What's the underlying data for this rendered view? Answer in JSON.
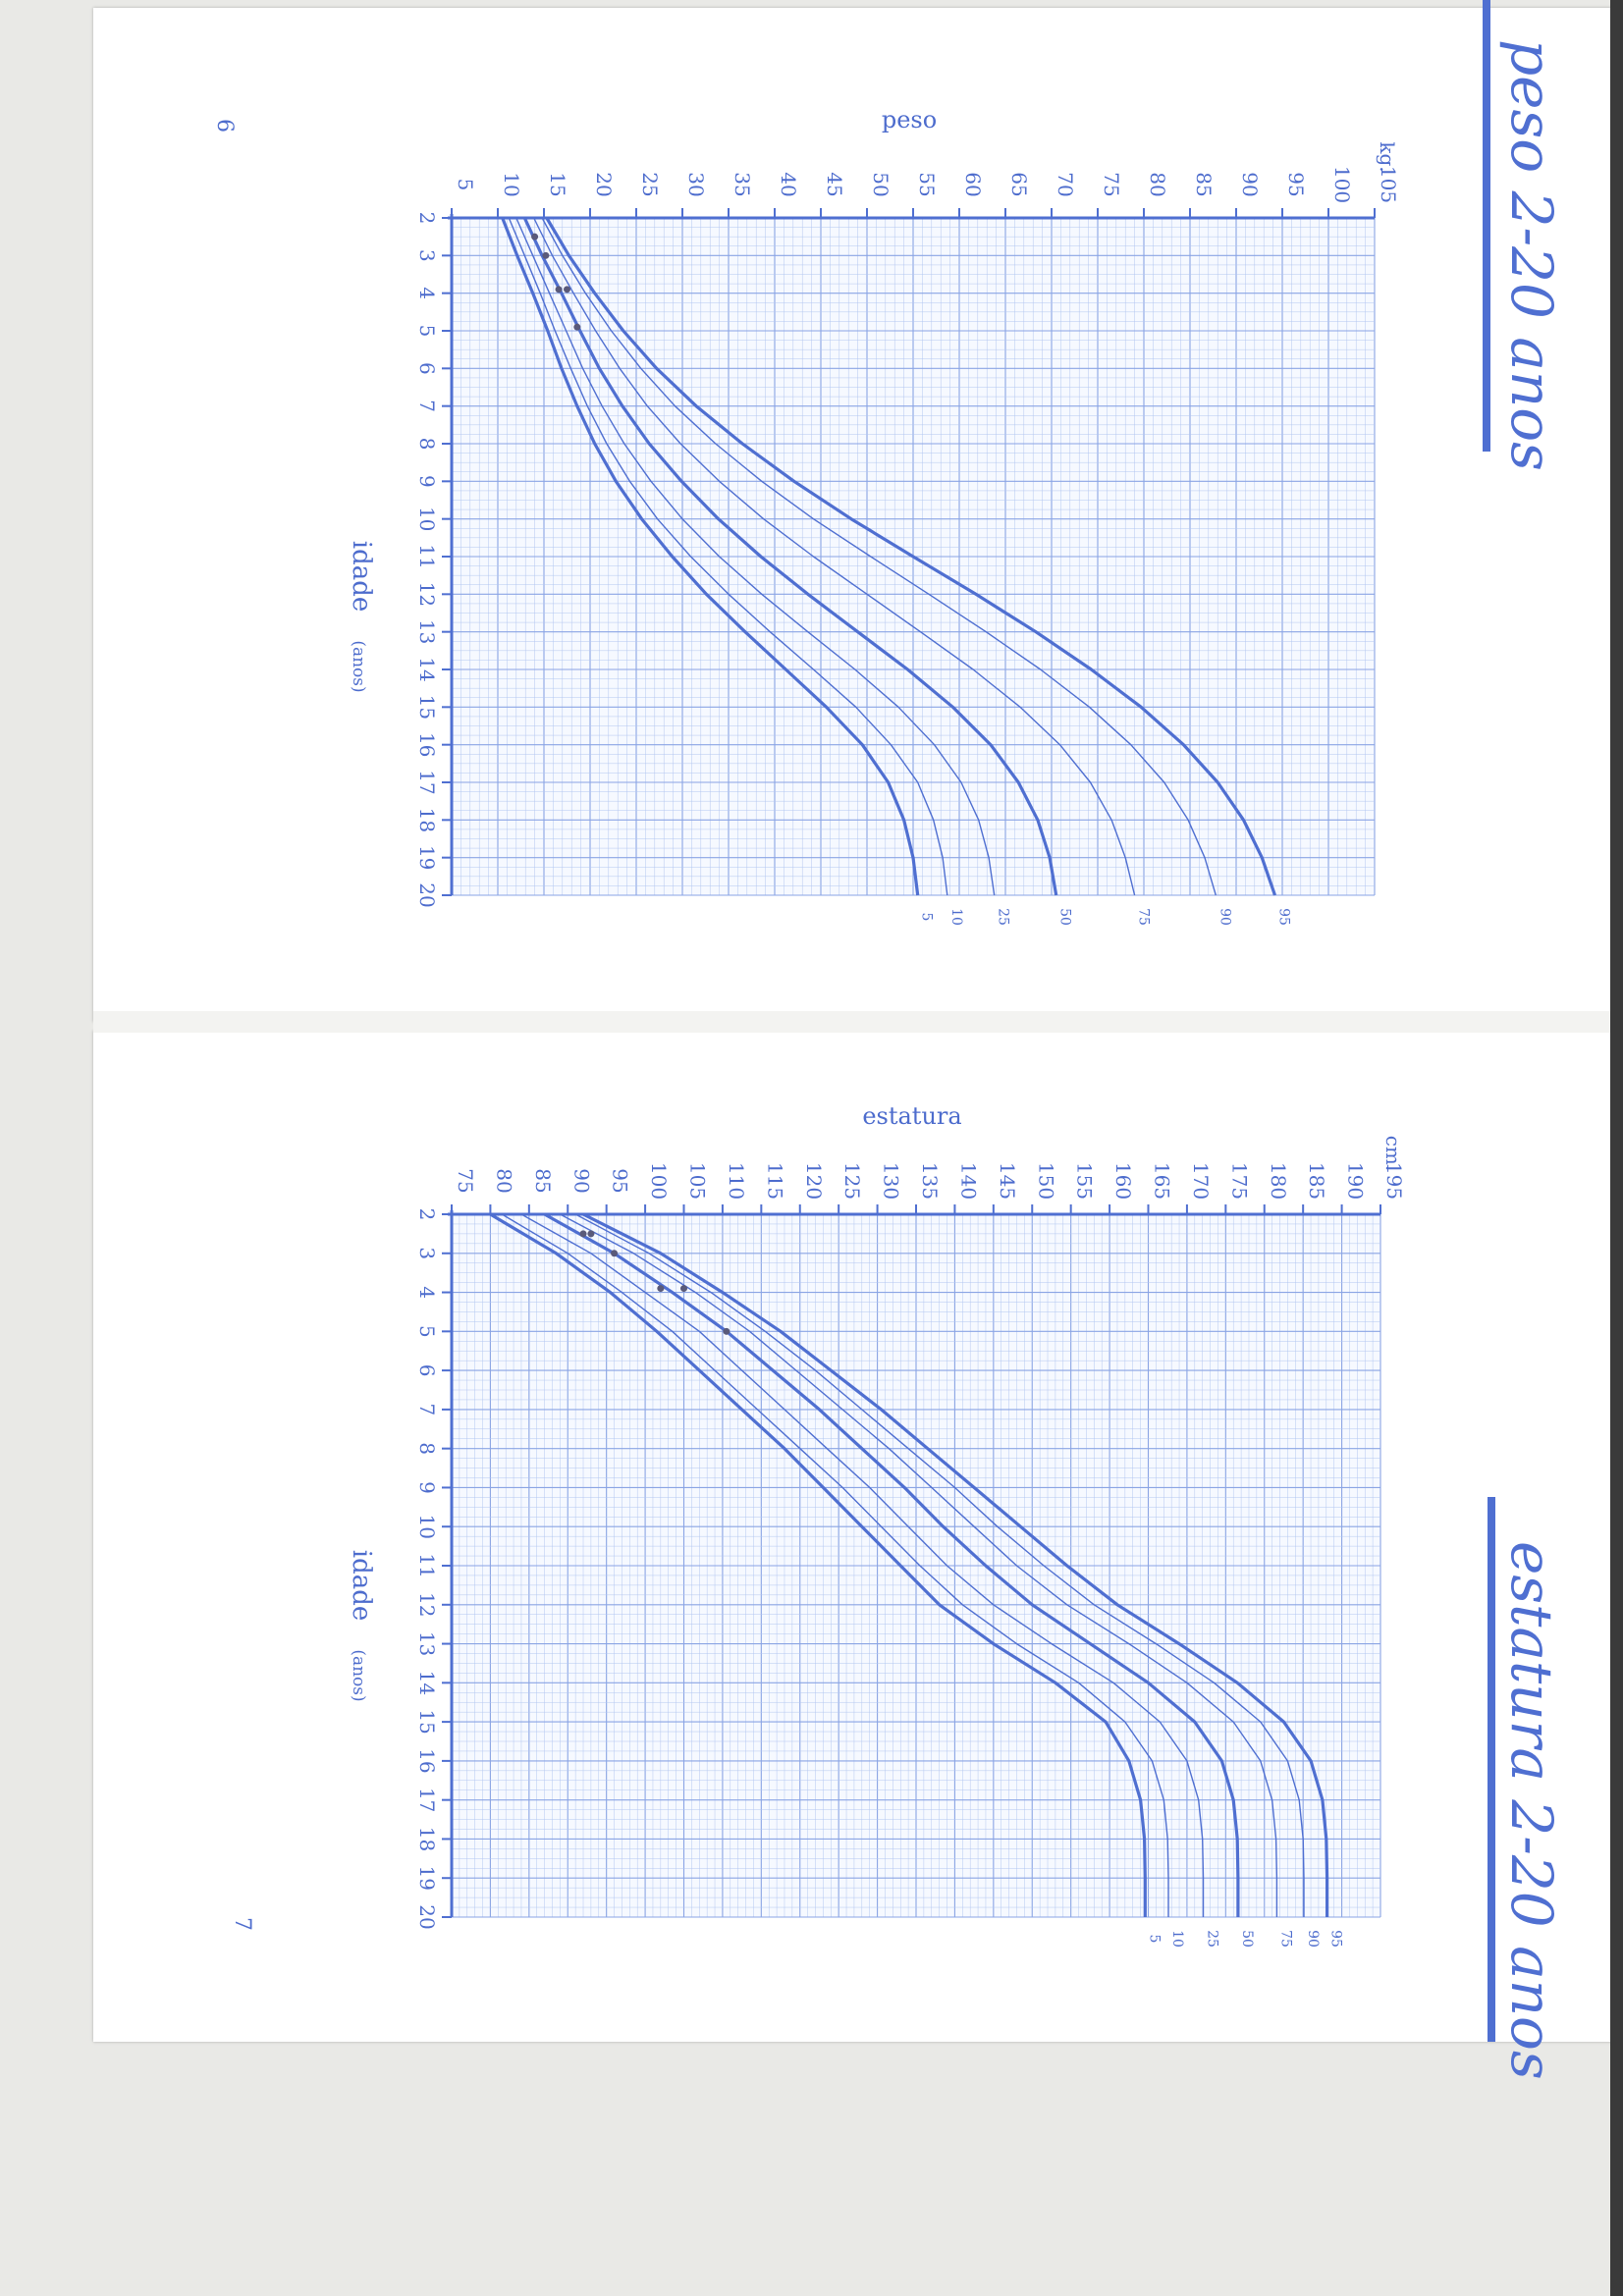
{
  "colors": {
    "ink": "#4f6fd1",
    "grid": "#b3c6f0",
    "gridMajor": "#8aa4e4",
    "tickText": "#4d6ccd"
  },
  "pages": {
    "left_number": "6",
    "right_number": "7"
  },
  "chart_data": [
    {
      "type": "line",
      "title": "peso 2-20 anos",
      "value_label": "peso",
      "unit": "kg.",
      "xlabel": "idade",
      "xlabel_unit": "(anos)",
      "x": [
        2,
        3,
        4,
        5,
        6,
        7,
        8,
        9,
        10,
        11,
        12,
        13,
        14,
        15,
        16,
        17,
        18,
        19,
        20
      ],
      "xlim": [
        2,
        20
      ],
      "ylim": [
        5,
        105
      ],
      "y_ticks": [
        5,
        10,
        15,
        20,
        25,
        30,
        35,
        40,
        45,
        50,
        55,
        60,
        65,
        70,
        75,
        80,
        85,
        90,
        95,
        100,
        105
      ],
      "grid": true,
      "series": [
        {
          "name": "5",
          "values": [
            10.5,
            12.1,
            13.8,
            15.4,
            16.9,
            18.6,
            20.5,
            22.8,
            25.6,
            28.9,
            32.6,
            36.8,
            41.2,
            45.6,
            49.5,
            52.3,
            54.0,
            55.0,
            55.5
          ]
        },
        {
          "name": "10",
          "values": [
            11.2,
            12.9,
            14.6,
            16.2,
            17.9,
            19.7,
            21.8,
            24.3,
            27.3,
            30.9,
            35.0,
            39.5,
            44.2,
            48.8,
            52.6,
            55.5,
            57.2,
            58.2,
            58.7
          ]
        },
        {
          "name": "25",
          "values": [
            12.0,
            13.8,
            15.6,
            17.4,
            19.2,
            21.3,
            23.7,
            26.6,
            30.0,
            34.0,
            38.6,
            43.6,
            48.7,
            53.4,
            57.3,
            60.2,
            62.1,
            63.2,
            63.8
          ]
        },
        {
          "name": "50",
          "values": [
            12.9,
            14.8,
            16.9,
            18.9,
            21.0,
            23.5,
            26.4,
            29.9,
            33.9,
            38.5,
            43.6,
            49.0,
            54.4,
            59.3,
            63.4,
            66.4,
            68.5,
            69.8,
            70.5
          ]
        },
        {
          "name": "75",
          "values": [
            13.9,
            15.9,
            18.2,
            20.6,
            23.2,
            26.2,
            29.8,
            34.0,
            38.8,
            44.2,
            50.0,
            55.8,
            61.5,
            66.6,
            70.9,
            74.2,
            76.5,
            78.0,
            79.0
          ]
        },
        {
          "name": "90",
          "values": [
            14.8,
            17.0,
            19.5,
            22.3,
            25.5,
            29.2,
            33.6,
            38.6,
            44.2,
            50.4,
            56.7,
            62.9,
            68.8,
            74.1,
            78.6,
            82.2,
            84.8,
            86.6,
            87.8
          ]
        },
        {
          "name": "95",
          "values": [
            15.3,
            17.7,
            20.5,
            23.6,
            27.2,
            31.5,
            36.5,
            42.1,
            48.3,
            55.0,
            61.8,
            68.3,
            74.3,
            79.7,
            84.3,
            88.0,
            90.8,
            92.8,
            94.2
          ]
        }
      ],
      "bold_series": [
        "5",
        "50",
        "95"
      ],
      "points": [
        {
          "x": 2.5,
          "y": 14.0
        },
        {
          "x": 3.0,
          "y": 15.2
        },
        {
          "x": 3.9,
          "y": 16.6
        },
        {
          "x": 3.9,
          "y": 17.5
        },
        {
          "x": 4.9,
          "y": 18.6
        }
      ]
    },
    {
      "type": "line",
      "title": "estatura 2-20 anos",
      "value_label": "estatura",
      "unit": "cm.",
      "xlabel": "idade",
      "xlabel_unit": "(anos)",
      "x": [
        2,
        3,
        4,
        5,
        6,
        7,
        8,
        9,
        10,
        11,
        12,
        13,
        14,
        15,
        16,
        17,
        18,
        19,
        20
      ],
      "xlim": [
        2,
        20
      ],
      "ylim": [
        75,
        195
      ],
      "y_ticks": [
        75,
        80,
        85,
        90,
        95,
        100,
        105,
        110,
        115,
        120,
        125,
        130,
        135,
        140,
        145,
        150,
        155,
        160,
        165,
        170,
        175,
        180,
        185,
        190,
        195
      ],
      "grid": true,
      "series": [
        {
          "name": "5",
          "values": [
            80.0,
            88.5,
            95.5,
            101.5,
            107.0,
            112.5,
            118.0,
            123.0,
            128.0,
            133.0,
            138.0,
            145.0,
            153.0,
            159.5,
            162.5,
            164.0,
            164.5,
            164.6,
            164.6
          ]
        },
        {
          "name": "10",
          "values": [
            81.5,
            90.0,
            97.0,
            103.5,
            109.0,
            114.5,
            120.0,
            125.5,
            130.5,
            135.5,
            141.0,
            148.0,
            156.0,
            162.0,
            165.5,
            167.0,
            167.5,
            167.6,
            167.6
          ]
        },
        {
          "name": "25",
          "values": [
            84.0,
            93.0,
            100.0,
            107.0,
            112.5,
            118.0,
            123.5,
            129.0,
            134.0,
            139.0,
            145.0,
            152.5,
            160.5,
            166.5,
            170.0,
            171.5,
            172.0,
            172.1,
            172.1
          ]
        },
        {
          "name": "50",
          "values": [
            87.0,
            96.0,
            103.5,
            110.5,
            116.5,
            122.5,
            128.0,
            133.5,
            138.5,
            144.0,
            150.0,
            157.5,
            165.0,
            171.0,
            174.5,
            176.0,
            176.5,
            176.6,
            176.6
          ]
        },
        {
          "name": "75",
          "values": [
            89.0,
            98.5,
            106.5,
            113.5,
            119.5,
            125.5,
            131.5,
            137.0,
            142.5,
            148.0,
            154.5,
            162.5,
            170.0,
            176.0,
            179.5,
            181.0,
            181.5,
            181.6,
            181.6
          ]
        },
        {
          "name": "90",
          "values": [
            91.0,
            100.5,
            108.5,
            115.5,
            122.0,
            128.0,
            134.0,
            140.0,
            145.5,
            151.5,
            158.0,
            166.0,
            173.5,
            179.5,
            183.0,
            184.5,
            185.0,
            185.1,
            185.1
          ]
        },
        {
          "name": "95",
          "values": [
            92.0,
            102.0,
            110.0,
            117.5,
            124.0,
            130.5,
            136.5,
            142.5,
            148.5,
            154.5,
            161.0,
            169.0,
            176.5,
            182.5,
            186.0,
            187.5,
            188.0,
            188.1,
            188.1
          ]
        }
      ],
      "bold_series": [
        "5",
        "50",
        "95"
      ],
      "points": [
        {
          "x": 2.5,
          "y": 92.0
        },
        {
          "x": 2.5,
          "y": 93.0
        },
        {
          "x": 3.0,
          "y": 96.0
        },
        {
          "x": 3.9,
          "y": 102.0
        },
        {
          "x": 3.9,
          "y": 105.0
        },
        {
          "x": 5.0,
          "y": 110.5
        }
      ]
    }
  ]
}
